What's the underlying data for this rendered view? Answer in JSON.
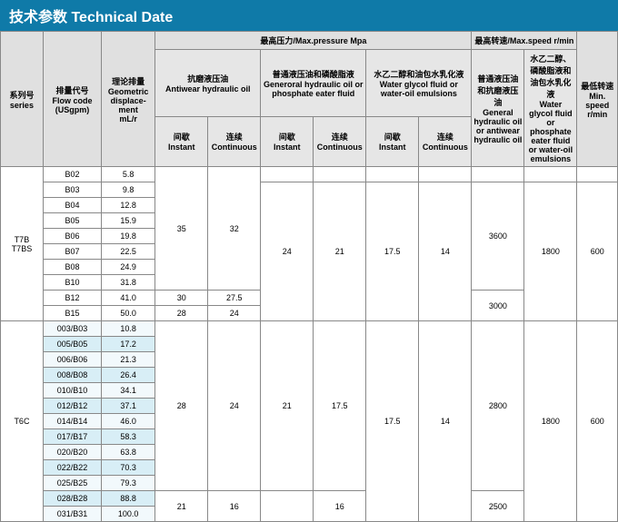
{
  "title_cn": "技术参数",
  "title_en": "Technical Date",
  "headers": {
    "series_cn": "系列号",
    "series_en": "series",
    "flowcode_cn": "排量代号",
    "flowcode_en": "Flow code",
    "flowcode_unit": "(USgpm)",
    "displacement_cn": "理论排量",
    "displacement_en": "Geometric displace-ment",
    "displacement_unit": "mL/r",
    "maxpressure_cn": "最高压力",
    "maxpressure_en": "/Max.pressure Mpa",
    "antiwear_cn": "抗磨液压油",
    "antiwear_en": "Antiwear hydraulic oil",
    "general_cn": "普通液压油和磷酸脂液",
    "general_en": "Generoral hydraulic oil or phosphate eater fluid",
    "water_cn": "水乙二醇和油包水乳化液",
    "water_en": "Water glycol fluid or water-oil emulsions",
    "maxspeed_cn": "最高转速",
    "maxspeed_en": "/Max.speed r/min",
    "speed_general_cn": "普通液压油和抗磨液压油",
    "speed_general_en": "General hydraulic oil or antiwear hydraulic oil",
    "speed_water_cn": "水乙二醇、磷酸脂液和油包水乳化液",
    "speed_water_en": "Water glycol fluid or phosphate eater fluid or water-oil emulsions",
    "minspeed_cn": "最低转速",
    "minspeed_en": "Min. speed",
    "minspeed_unit": "r/min",
    "instant_cn": "间歇",
    "instant_en": "Instant",
    "cont_cn": "连续",
    "cont_en": "Continuous"
  },
  "series": [
    {
      "name": "T7B\nT7BS",
      "rows": [
        {
          "code": "B02",
          "disp": "5.8"
        },
        {
          "code": "B03",
          "disp": "9.8"
        },
        {
          "code": "B04",
          "disp": "12.8"
        },
        {
          "code": "B05",
          "disp": "15.9"
        },
        {
          "code": "B06",
          "disp": "19.8"
        },
        {
          "code": "B07",
          "disp": "22.5"
        },
        {
          "code": "B08",
          "disp": "24.9"
        },
        {
          "code": "B10",
          "disp": "31.8"
        },
        {
          "code": "B12",
          "disp": "41.0"
        },
        {
          "code": "B15",
          "disp": "50.0"
        }
      ],
      "groups": {
        "antiwear": [
          {
            "span": 8,
            "instant": "35",
            "cont": "32"
          },
          {
            "span": 1,
            "instant": "30",
            "cont": "27.5"
          },
          {
            "span": 1,
            "instant": "28",
            "cont": "24"
          }
        ],
        "general": [
          {
            "span": 1,
            "instant": "",
            "cont": ""
          },
          {
            "span": 9,
            "instant": "24",
            "cont": "21"
          }
        ],
        "water": [
          {
            "span": 1,
            "instant": "",
            "cont": ""
          },
          {
            "span": 9,
            "instant": "17.5",
            "cont": "14"
          }
        ],
        "speed_gen": [
          {
            "span": 1,
            "val": ""
          },
          {
            "span": 7,
            "val": "3600"
          },
          {
            "span": 2,
            "val": "3000"
          }
        ],
        "speed_wat": [
          {
            "span": 1,
            "val": ""
          },
          {
            "span": 9,
            "val": "1800"
          }
        ],
        "min": [
          {
            "span": 1,
            "val": ""
          },
          {
            "span": 9,
            "val": "600"
          }
        ]
      }
    },
    {
      "name": "T6C",
      "rows": [
        {
          "code": "003/B03",
          "disp": "10.8"
        },
        {
          "code": "005/B05",
          "disp": "17.2"
        },
        {
          "code": "006/B06",
          "disp": "21.3"
        },
        {
          "code": "008/B08",
          "disp": "26.4"
        },
        {
          "code": "010/B10",
          "disp": "34.1"
        },
        {
          "code": "012/B12",
          "disp": "37.1"
        },
        {
          "code": "014/B14",
          "disp": "46.0"
        },
        {
          "code": "017/B17",
          "disp": "58.3"
        },
        {
          "code": "020/B20",
          "disp": "63.8"
        },
        {
          "code": "022/B22",
          "disp": "70.3"
        },
        {
          "code": "025/B25",
          "disp": "79.3"
        },
        {
          "code": "028/B28",
          "disp": "88.8"
        },
        {
          "code": "031/B31",
          "disp": "100.0"
        }
      ],
      "groups": {
        "antiwear": [
          {
            "span": 11,
            "instant": "28",
            "cont": "24"
          },
          {
            "span": 2,
            "instant": "21",
            "cont": "16"
          }
        ],
        "general": [
          {
            "span": 11,
            "instant": "21",
            "cont": "17.5"
          },
          {
            "span": 2,
            "instant": "",
            "cont": "16"
          }
        ],
        "water": [
          {
            "span": 13,
            "instant": "17.5",
            "cont": "14"
          }
        ],
        "speed_gen": [
          {
            "span": 11,
            "val": "2800"
          },
          {
            "span": 2,
            "val": "2500"
          }
        ],
        "speed_wat": [
          {
            "span": 13,
            "val": "1800"
          }
        ],
        "min": [
          {
            "span": 13,
            "val": "600"
          }
        ]
      }
    }
  ]
}
